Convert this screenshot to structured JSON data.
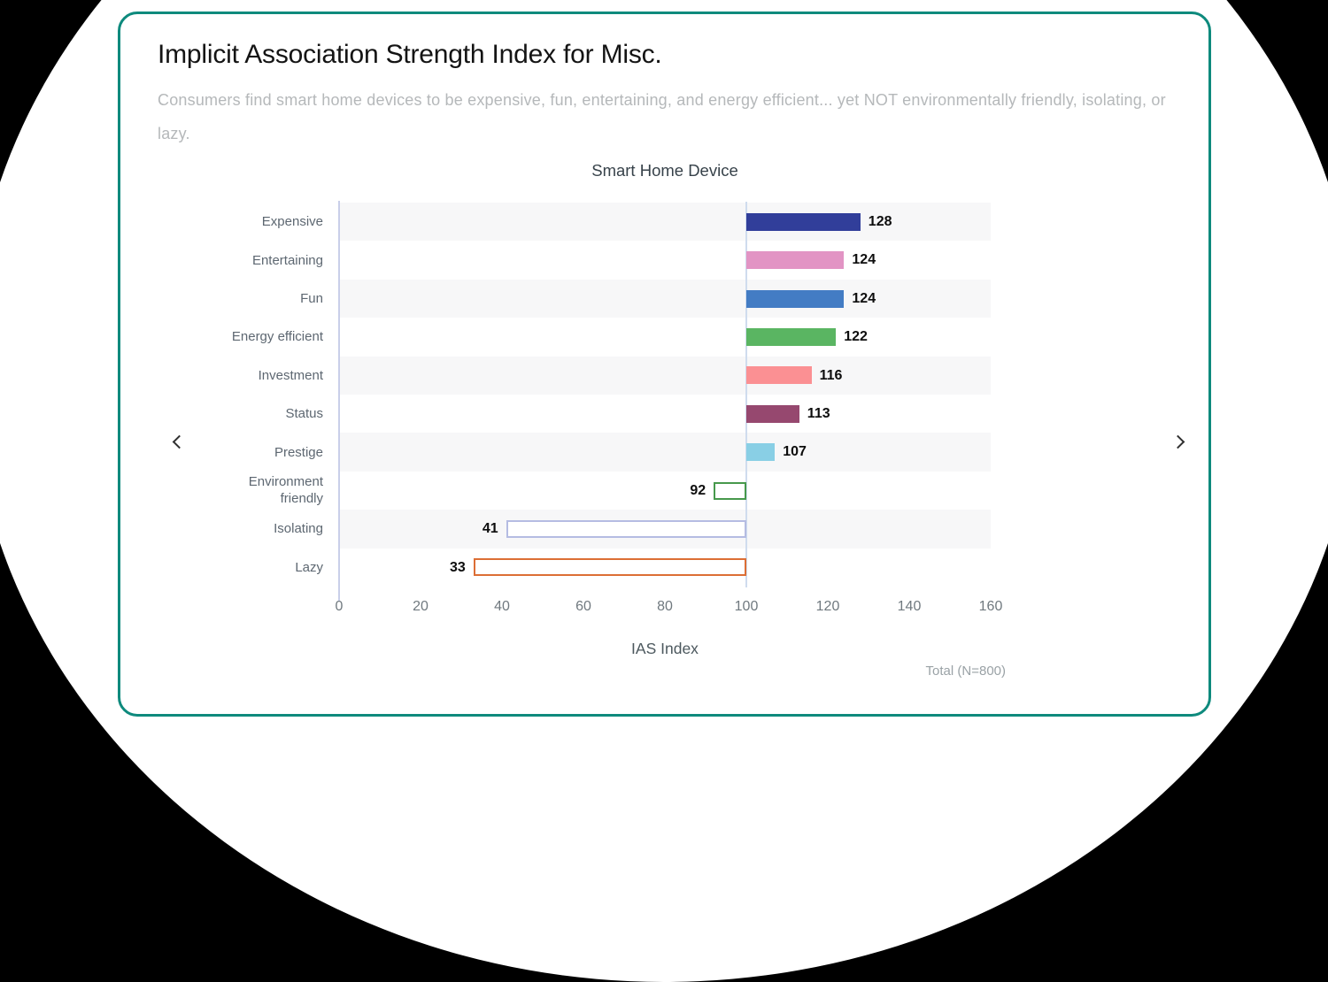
{
  "page": {
    "title": "Implicit Association Strength Index for Misc.",
    "subtitle": "Consumers find smart home devices to be expensive, fun, entertaining, and energy efficient... yet NOT environmentally friendly, isolating, or lazy.",
    "footnote": "Total (N=800)"
  },
  "nav": {
    "prev_icon": "chevron-left",
    "next_icon": "chevron-right"
  },
  "colors": {
    "card_border": "#0e8a7d",
    "title_color": "#141414",
    "subtitle_color": "#b5b8ba",
    "chart_title_color": "#37424a",
    "category_color": "#5d6771",
    "tick_color": "#70797f",
    "axis_title_color": "#4c585e",
    "footnote_color": "#9aa2a6",
    "value_color": "#0d0d0d",
    "row_band": "#f7f7f8",
    "zero_line": "#c9cfe9",
    "baseline_line": "#cfdcee"
  },
  "chart_data": {
    "type": "bar",
    "orientation": "horizontal",
    "title": "Smart Home Device",
    "xlabel": "IAS Index",
    "baseline": 100,
    "xlim": [
      0,
      160
    ],
    "xticks": [
      0,
      20,
      40,
      60,
      80,
      100,
      120,
      140,
      160
    ],
    "grid": false,
    "row_banding": true,
    "categories": [
      "Expensive",
      "Entertaining",
      "Fun",
      "Energy efficient",
      "Investment",
      "Status",
      "Prestige",
      "Environment friendly",
      "Isolating",
      "Lazy"
    ],
    "values": [
      128,
      124,
      124,
      122,
      116,
      113,
      107,
      92,
      41,
      33
    ],
    "bar_colors": [
      "#313e9a",
      "#e294c4",
      "#437cc4",
      "#5ab562",
      "#fb9093",
      "#96486f",
      "#89cfe5",
      "#47994c",
      "#b5bce2",
      "#dc6e35"
    ],
    "bar_styles": [
      "solid",
      "solid",
      "solid",
      "solid",
      "solid",
      "solid",
      "solid",
      "outline",
      "outline",
      "outline"
    ]
  }
}
